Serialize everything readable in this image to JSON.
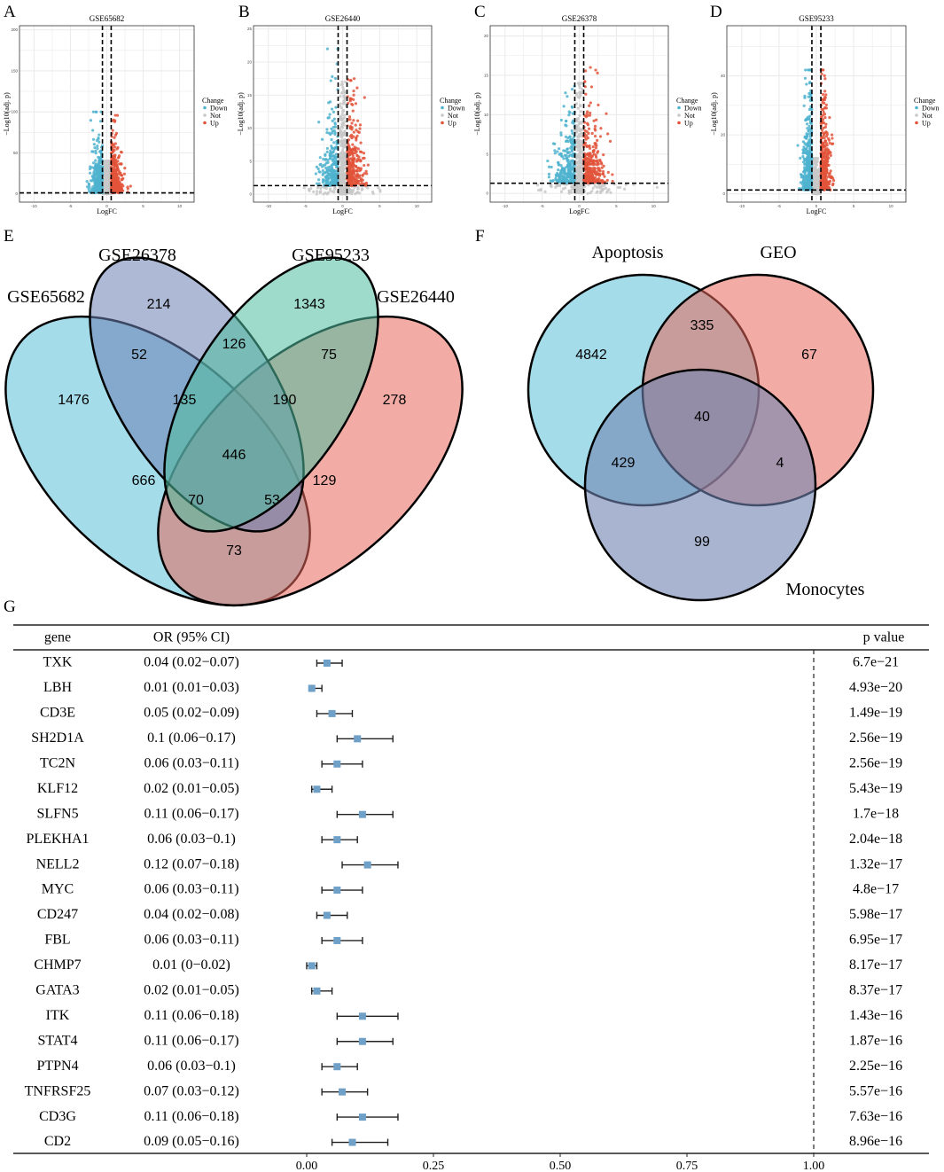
{
  "panel_letters": [
    "A",
    "B",
    "C",
    "D",
    "E",
    "F",
    "G"
  ],
  "chart_data": [
    {
      "type": "scatter",
      "title": "GSE65682",
      "xlabel": "LogFC",
      "ylabel": "−Log10(adj. p)",
      "xlim": [
        -12,
        12
      ],
      "ylim": [
        -10,
        205
      ],
      "xticks": [
        "-10",
        "-5",
        "0",
        "5",
        "10"
      ],
      "yticks": [
        0,
        50,
        100,
        150,
        200
      ],
      "logfc_threshold": 0.6,
      "p_threshold_line": 1.3,
      "legend": {
        "title": "Change",
        "entries": [
          "Down",
          "Not",
          "Up"
        ],
        "placement": "right"
      },
      "colors": {
        "Down": "#4fb3cf",
        "Not": "#c8c8c8",
        "Up": "#e2533a"
      }
    },
    {
      "type": "scatter",
      "title": "GSE26440",
      "xlabel": "LogFC",
      "ylabel": "−Log10(adj. p)",
      "xlim": [
        -12,
        12
      ],
      "ylim": [
        -1.2,
        25.5
      ],
      "xticks": [
        "-10",
        "-5",
        "0",
        "5",
        "10"
      ],
      "yticks": [
        0,
        5,
        10,
        15,
        20,
        25
      ],
      "logfc_threshold": 0.6,
      "p_threshold_line": 1.3,
      "legend": {
        "title": "Change",
        "entries": [
          "Down",
          "Not",
          "Up"
        ],
        "placement": "right"
      },
      "colors": {
        "Down": "#4fb3cf",
        "Not": "#c8c8c8",
        "Up": "#e2533a"
      }
    },
    {
      "type": "scatter",
      "title": "GSE26378",
      "xlabel": "LogFC",
      "ylabel": "−Log10(adj. p)",
      "xlim": [
        -12,
        12
      ],
      "ylim": [
        -1.1,
        21.3
      ],
      "xticks": [
        "-10",
        "-5",
        "0",
        "5",
        "10"
      ],
      "yticks": [
        0,
        5,
        10,
        15,
        20
      ],
      "logfc_threshold": 0.6,
      "p_threshold_line": 1.3,
      "legend": {
        "title": "Change",
        "entries": [
          "Down",
          "Not",
          "Up"
        ],
        "placement": "right"
      },
      "colors": {
        "Down": "#4fb3cf",
        "Not": "#c8c8c8",
        "Up": "#e2533a"
      }
    },
    {
      "type": "scatter",
      "title": "GSE95233",
      "xlabel": "LogFC",
      "ylabel": "−Log10(adj. p)",
      "xlim": [
        -12,
        12
      ],
      "ylim": [
        -2.8,
        57
      ],
      "xticks": [
        "-10",
        "-5",
        "0",
        "5",
        "10"
      ],
      "yticks": [
        0,
        20,
        40
      ],
      "logfc_threshold": 0.6,
      "p_threshold_line": 1.3,
      "legend": {
        "title": "Change",
        "entries": [
          "Down",
          "Not",
          "Up"
        ],
        "placement": "right"
      },
      "colors": {
        "Down": "#4fb3cf",
        "Not": "#c8c8c8",
        "Up": "#e2533a"
      }
    },
    {
      "type": "venn",
      "sets": [
        "GSE65682",
        "GSE26378",
        "GSE95233",
        "GSE26440"
      ],
      "regions": [
        {
          "sets": "GSE65682 only",
          "value": "1476"
        },
        {
          "sets": "GSE26378 only",
          "value": "214"
        },
        {
          "sets": "GSE95233 only",
          "value": "1343"
        },
        {
          "sets": "GSE26440 only",
          "value": "278"
        },
        {
          "sets": "GSE65682∩GSE26378",
          "value": "52"
        },
        {
          "sets": "GSE26378∩GSE95233",
          "value": "126"
        },
        {
          "sets": "GSE95233∩GSE26440",
          "value": "75"
        },
        {
          "sets": "GSE65682∩GSE26378∩GSE95233",
          "value": "135"
        },
        {
          "sets": "GSE26378∩GSE95233∩GSE26440",
          "value": "190"
        },
        {
          "sets": "all four",
          "value": "446"
        },
        {
          "sets": "GSE65682∩GSE95233",
          "value": "666"
        },
        {
          "sets": "GSE26378∩GSE26440",
          "value": "129"
        },
        {
          "sets": "GSE65682∩GSE95233∩GSE26440",
          "value": "70"
        },
        {
          "sets": "GSE65682∩GSE26378∩GSE26440",
          "value": "53"
        },
        {
          "sets": "GSE65682∩GSE26440",
          "value": "73"
        }
      ],
      "colors": {
        "GSE65682": "#5bc0d8",
        "GSE26378": "#6b7fb3",
        "GSE95233": "#4ebd9e",
        "GSE26440": "#e8685b"
      }
    },
    {
      "type": "venn",
      "sets": [
        "Apoptosis",
        "GEO",
        "Monocytes"
      ],
      "regions": [
        {
          "sets": "Apoptosis only",
          "value": "4842"
        },
        {
          "sets": "Apoptosis∩GEO",
          "value": "335"
        },
        {
          "sets": "GEO only",
          "value": "67"
        },
        {
          "sets": "all three",
          "value": "40"
        },
        {
          "sets": "Apoptosis∩Monocytes",
          "value": "429"
        },
        {
          "sets": "GEO∩Monocytes",
          "value": "4"
        },
        {
          "sets": "Monocytes only",
          "value": "99"
        }
      ],
      "colors": {
        "Apoptosis": "#5bc0d8",
        "GEO": "#e8685b",
        "Monocytes": "#6f83b0"
      }
    },
    {
      "type": "forest",
      "headers": {
        "gene": "gene",
        "or": "OR (95% CI)",
        "p": "p value"
      },
      "xlim": [
        0,
        1
      ],
      "xticks": [
        "0.00",
        "0.25",
        "0.50",
        "0.75",
        "1.00"
      ],
      "reference_line": 1,
      "marker_color": "#6fa0c8",
      "rows": [
        {
          "gene": "TXK",
          "or": 0.04,
          "lo": 0.02,
          "hi": 0.07,
          "label": "0.04 (0.02−0.07)",
          "p": "6.7e−21"
        },
        {
          "gene": "LBH",
          "or": 0.01,
          "lo": 0.01,
          "hi": 0.03,
          "label": "0.01 (0.01−0.03)",
          "p": "4.93e−20"
        },
        {
          "gene": "CD3E",
          "or": 0.05,
          "lo": 0.02,
          "hi": 0.09,
          "label": "0.05 (0.02−0.09)",
          "p": "1.49e−19"
        },
        {
          "gene": "SH2D1A",
          "or": 0.1,
          "lo": 0.06,
          "hi": 0.17,
          "label": "0.1 (0.06−0.17)",
          "p": "2.56e−19"
        },
        {
          "gene": "TC2N",
          "or": 0.06,
          "lo": 0.03,
          "hi": 0.11,
          "label": "0.06 (0.03−0.11)",
          "p": "2.56e−19"
        },
        {
          "gene": "KLF12",
          "or": 0.02,
          "lo": 0.01,
          "hi": 0.05,
          "label": "0.02 (0.01−0.05)",
          "p": "5.43e−19"
        },
        {
          "gene": "SLFN5",
          "or": 0.11,
          "lo": 0.06,
          "hi": 0.17,
          "label": "0.11 (0.06−0.17)",
          "p": "1.7e−18"
        },
        {
          "gene": "PLEKHA1",
          "or": 0.06,
          "lo": 0.03,
          "hi": 0.1,
          "label": "0.06 (0.03−0.1)",
          "p": "2.04e−18"
        },
        {
          "gene": "NELL2",
          "or": 0.12,
          "lo": 0.07,
          "hi": 0.18,
          "label": "0.12 (0.07−0.18)",
          "p": "1.32e−17"
        },
        {
          "gene": "MYC",
          "or": 0.06,
          "lo": 0.03,
          "hi": 0.11,
          "label": "0.06 (0.03−0.11)",
          "p": "4.8e−17"
        },
        {
          "gene": "CD247",
          "or": 0.04,
          "lo": 0.02,
          "hi": 0.08,
          "label": "0.04 (0.02−0.08)",
          "p": "5.98e−17"
        },
        {
          "gene": "FBL",
          "or": 0.06,
          "lo": 0.03,
          "hi": 0.11,
          "label": "0.06 (0.03−0.11)",
          "p": "6.95e−17"
        },
        {
          "gene": "CHMP7",
          "or": 0.01,
          "lo": 0.0,
          "hi": 0.02,
          "label": "0.01 (0−0.02)",
          "p": "8.17e−17"
        },
        {
          "gene": "GATA3",
          "or": 0.02,
          "lo": 0.01,
          "hi": 0.05,
          "label": "0.02 (0.01−0.05)",
          "p": "8.37e−17"
        },
        {
          "gene": "ITK",
          "or": 0.11,
          "lo": 0.06,
          "hi": 0.18,
          "label": "0.11 (0.06−0.18)",
          "p": "1.43e−16"
        },
        {
          "gene": "STAT4",
          "or": 0.11,
          "lo": 0.06,
          "hi": 0.17,
          "label": "0.11 (0.06−0.17)",
          "p": "1.87e−16"
        },
        {
          "gene": "PTPN4",
          "or": 0.06,
          "lo": 0.03,
          "hi": 0.1,
          "label": "0.06 (0.03−0.1)",
          "p": "2.25e−16"
        },
        {
          "gene": "TNFRSF25",
          "or": 0.07,
          "lo": 0.03,
          "hi": 0.12,
          "label": "0.07 (0.03−0.12)",
          "p": "5.57e−16"
        },
        {
          "gene": "CD3G",
          "or": 0.11,
          "lo": 0.06,
          "hi": 0.18,
          "label": "0.11 (0.06−0.18)",
          "p": "7.63e−16"
        },
        {
          "gene": "CD2",
          "or": 0.09,
          "lo": 0.05,
          "hi": 0.16,
          "label": "0.09 (0.05−0.16)",
          "p": "8.96e−16"
        }
      ]
    }
  ]
}
